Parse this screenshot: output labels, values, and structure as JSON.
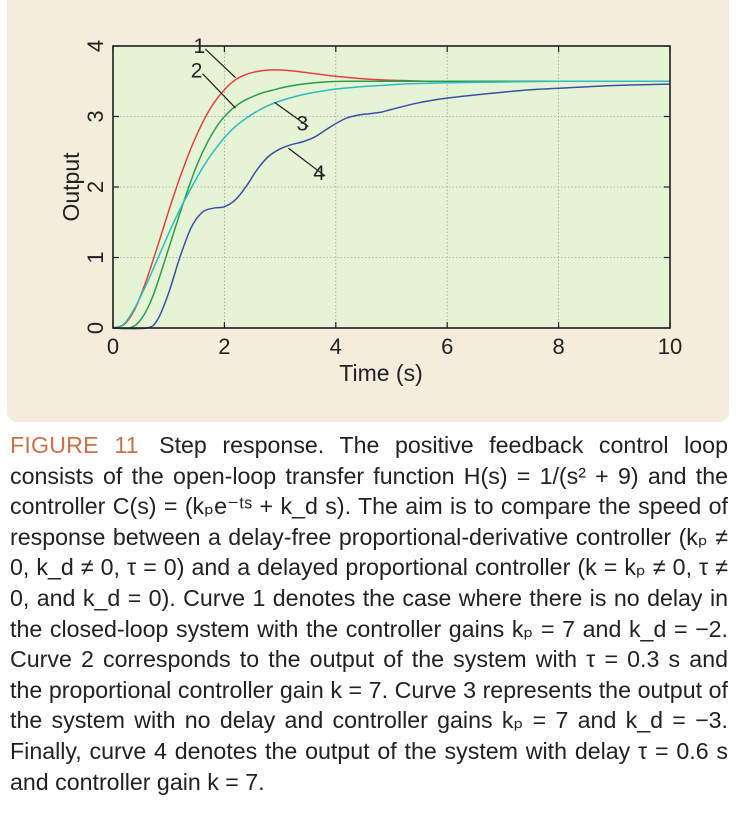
{
  "figure": {
    "label": "FIGURE",
    "number": "11",
    "caption": "Step response. The positive feedback control loop consists of the open-loop transfer function H(s) = 1/(s² + 9) and the controller C(s) = (kₚe⁻ᵗˢ + k_d s). The aim is to compare the speed of response between a delay-free proportional-derivative controller (kₚ ≠ 0, k_d ≠ 0, τ = 0) and a delayed proportional controller (k = kₚ ≠ 0, τ ≠ 0, and k_d = 0). Curve 1 denotes the case where there is no delay in the closed-loop system with the controller gains kₚ = 7 and k_d = −2. Curve 2 corresponds to the output of the system with τ = 0.3 s and the proportional controller gain k = 7. Curve 3 represents the output of the system with no delay and controller gains kₚ = 7 and k_d = −3. Finally, curve 4 denotes the output of the system with delay τ = 0.6 s and controller gain k = 7.",
    "accent_color": "#c8734a",
    "panel_color": "#f5ecdc"
  },
  "chart_data": {
    "type": "line",
    "xlabel": "Time (s)",
    "ylabel": "Output",
    "xlim": [
      0,
      10
    ],
    "ylim": [
      0,
      4
    ],
    "xticks": [
      "0",
      "2",
      "4",
      "6",
      "8",
      "10"
    ],
    "yticks": [
      "0",
      "1",
      "2",
      "3",
      "4"
    ],
    "grid": true,
    "background": "#e6f4d6",
    "series": [
      {
        "name": "1",
        "color": "#e8413a",
        "x": [
          0,
          0.2,
          0.4,
          0.6,
          0.8,
          1.0,
          1.2,
          1.4,
          1.6,
          1.8,
          2.0,
          2.2,
          2.4,
          2.6,
          2.8,
          3.0,
          3.2,
          3.4,
          3.6,
          3.8,
          4.0,
          4.4,
          4.8,
          5.2,
          5.6,
          6.0,
          7.0,
          8.0,
          9.0,
          10.0
        ],
        "y": [
          0,
          0.05,
          0.28,
          0.68,
          1.16,
          1.66,
          2.13,
          2.55,
          2.9,
          3.18,
          3.38,
          3.52,
          3.6,
          3.64,
          3.66,
          3.66,
          3.65,
          3.63,
          3.61,
          3.59,
          3.57,
          3.54,
          3.52,
          3.51,
          3.5,
          3.5,
          3.5,
          3.5,
          3.5,
          3.5
        ]
      },
      {
        "name": "2",
        "color": "#2d9c4e",
        "x": [
          0,
          0.3,
          0.5,
          0.7,
          0.9,
          1.1,
          1.3,
          1.5,
          1.7,
          1.9,
          2.1,
          2.3,
          2.5,
          2.7,
          2.9,
          3.1,
          3.4,
          3.8,
          4.2,
          4.6,
          5.0,
          5.5,
          6.0,
          7.0,
          8.0,
          9.0,
          10.0
        ],
        "y": [
          0,
          0.0,
          0.12,
          0.42,
          0.88,
          1.38,
          1.86,
          2.3,
          2.64,
          2.9,
          3.08,
          3.2,
          3.28,
          3.34,
          3.38,
          3.42,
          3.46,
          3.49,
          3.5,
          3.5,
          3.5,
          3.5,
          3.5,
          3.5,
          3.5,
          3.5,
          3.5
        ]
      },
      {
        "name": "3",
        "color": "#2cbcc0",
        "x": [
          0,
          0.2,
          0.4,
          0.6,
          0.8,
          1.0,
          1.2,
          1.4,
          1.6,
          1.8,
          2.0,
          2.2,
          2.4,
          2.6,
          2.8,
          3.0,
          3.3,
          3.6,
          4.0,
          4.4,
          4.8,
          5.2,
          5.6,
          6.0,
          7.0,
          8.0,
          9.0,
          10.0
        ],
        "y": [
          0,
          0.06,
          0.3,
          0.62,
          0.98,
          1.34,
          1.68,
          1.98,
          2.26,
          2.5,
          2.7,
          2.86,
          2.98,
          3.08,
          3.16,
          3.22,
          3.29,
          3.34,
          3.39,
          3.42,
          3.44,
          3.46,
          3.47,
          3.48,
          3.49,
          3.5,
          3.5,
          3.5
        ]
      },
      {
        "name": "4",
        "color": "#3a4fa8",
        "x": [
          0,
          0.6,
          0.8,
          1.0,
          1.2,
          1.4,
          1.6,
          1.8,
          2.0,
          2.2,
          2.4,
          2.6,
          2.8,
          3.0,
          3.2,
          3.4,
          3.6,
          3.8,
          4.0,
          4.2,
          4.4,
          4.6,
          4.8,
          5.0,
          5.4,
          5.8,
          6.2,
          6.8,
          7.5,
          8.0,
          9.0,
          10.0
        ],
        "y": [
          0,
          0.0,
          0.12,
          0.5,
          1.0,
          1.42,
          1.64,
          1.7,
          1.72,
          1.82,
          2.02,
          2.26,
          2.44,
          2.54,
          2.6,
          2.64,
          2.7,
          2.8,
          2.9,
          2.98,
          3.02,
          3.04,
          3.06,
          3.1,
          3.18,
          3.24,
          3.28,
          3.33,
          3.38,
          3.4,
          3.44,
          3.46
        ]
      }
    ],
    "annotations": [
      {
        "text": "1",
        "x": 1.55,
        "y": 3.9,
        "ax": 2.2,
        "ay": 3.55
      },
      {
        "text": "2",
        "x": 1.5,
        "y": 3.55,
        "ax": 2.2,
        "ay": 3.12
      },
      {
        "text": "3",
        "x": 3.4,
        "y": 2.8,
        "ax": 2.9,
        "ay": 3.2
      },
      {
        "text": "4",
        "x": 3.7,
        "y": 2.1,
        "ax": 3.15,
        "ay": 2.55
      }
    ]
  }
}
